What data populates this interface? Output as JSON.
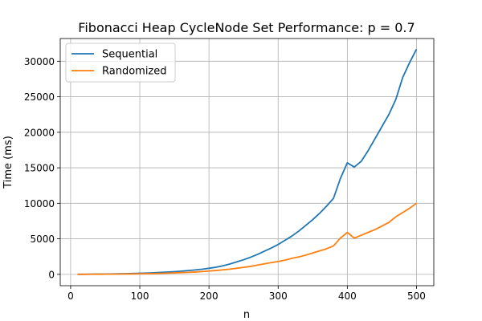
{
  "chart_data": {
    "type": "line",
    "title": "Fibonacci Heap CycleNode Set Performance: p = 0.7",
    "xlabel": "n",
    "ylabel": "Time (ms)",
    "xlim": [
      -15,
      525
    ],
    "ylim": [
      -1600,
      33200
    ],
    "xticks": [
      0,
      100,
      200,
      300,
      400,
      500
    ],
    "yticks": [
      0,
      5000,
      10000,
      15000,
      20000,
      25000,
      30000
    ],
    "grid": true,
    "legend_position": "top-left",
    "x": [
      10,
      20,
      30,
      40,
      50,
      60,
      70,
      80,
      90,
      100,
      110,
      120,
      130,
      140,
      150,
      160,
      170,
      180,
      190,
      200,
      210,
      220,
      230,
      240,
      250,
      260,
      270,
      280,
      290,
      300,
      310,
      320,
      330,
      340,
      350,
      360,
      370,
      380,
      390,
      400,
      410,
      420,
      430,
      440,
      450,
      460,
      470,
      480,
      490,
      500
    ],
    "series": [
      {
        "name": "Sequential",
        "color": "#1f77b4",
        "values": [
          5,
          10,
          20,
          30,
          40,
          55,
          75,
          95,
          120,
          150,
          180,
          220,
          270,
          320,
          380,
          450,
          530,
          620,
          720,
          850,
          1000,
          1200,
          1450,
          1750,
          2050,
          2400,
          2800,
          3250,
          3700,
          4200,
          4800,
          5400,
          6100,
          6900,
          7700,
          8600,
          9600,
          10700,
          13500,
          15700,
          15100,
          15900,
          17400,
          19100,
          20800,
          22500,
          24600,
          27700,
          29800,
          31700
        ]
      },
      {
        "name": "Randomized",
        "color": "#ff7f0e",
        "values": [
          3,
          5,
          10,
          15,
          20,
          28,
          38,
          50,
          62,
          80,
          95,
          115,
          140,
          165,
          200,
          240,
          280,
          330,
          390,
          460,
          540,
          630,
          730,
          850,
          980,
          1120,
          1300,
          1480,
          1650,
          1800,
          2000,
          2250,
          2450,
          2700,
          3000,
          3300,
          3600,
          4000,
          5100,
          5900,
          5100,
          5500,
          5900,
          6300,
          6800,
          7300,
          8100,
          8700,
          9300,
          10000
        ]
      }
    ]
  }
}
